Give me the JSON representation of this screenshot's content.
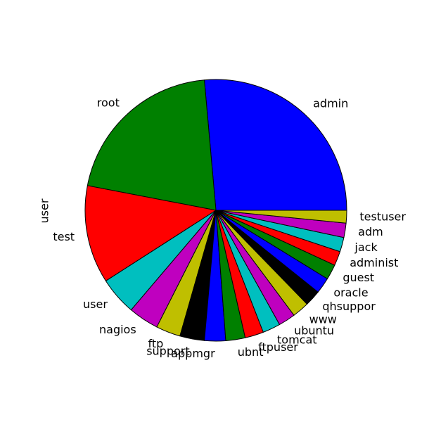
{
  "chart_data": {
    "type": "pie",
    "ylabel": "user",
    "start_angle": "0°",
    "direction": "counterclockwise",
    "slices": [
      {
        "label": "admin",
        "value": 25.3,
        "color": "#0000ff"
      },
      {
        "label": "root",
        "value": 19.7,
        "color": "#008000"
      },
      {
        "label": "test",
        "value": 11.6,
        "color": "#ff0000"
      },
      {
        "label": "user",
        "value": 4.5,
        "color": "#00bfbf"
      },
      {
        "label": "nagios",
        "value": 3.6,
        "color": "#bf00bf"
      },
      {
        "label": "ftp",
        "value": 2.9,
        "color": "#bfbf00"
      },
      {
        "label": "support",
        "value": 2.9,
        "color": "#000000"
      },
      {
        "label": "appmgr",
        "value": 2.5,
        "color": "#0000ff"
      },
      {
        "label": "ubnt",
        "value": 2.3,
        "color": "#008000"
      },
      {
        "label": "ftpuser",
        "value": 2.2,
        "color": "#ff0000"
      },
      {
        "label": "tomcat",
        "value": 2.1,
        "color": "#00bfbf"
      },
      {
        "label": "ubuntu",
        "value": 2.0,
        "color": "#bf00bf"
      },
      {
        "label": "www",
        "value": 2.0,
        "color": "#bfbf00"
      },
      {
        "label": "qhsuppor",
        "value": 1.9,
        "color": "#000000"
      },
      {
        "label": "oracle",
        "value": 1.9,
        "color": "#0000ff"
      },
      {
        "label": "guest",
        "value": 1.8,
        "color": "#008000"
      },
      {
        "label": "administ",
        "value": 1.7,
        "color": "#ff0000"
      },
      {
        "label": "jack",
        "value": 1.7,
        "color": "#00bfbf"
      },
      {
        "label": "adm",
        "value": 1.7,
        "color": "#bf00bf"
      },
      {
        "label": "testuser",
        "value": 1.5,
        "color": "#bfbf00"
      }
    ]
  }
}
